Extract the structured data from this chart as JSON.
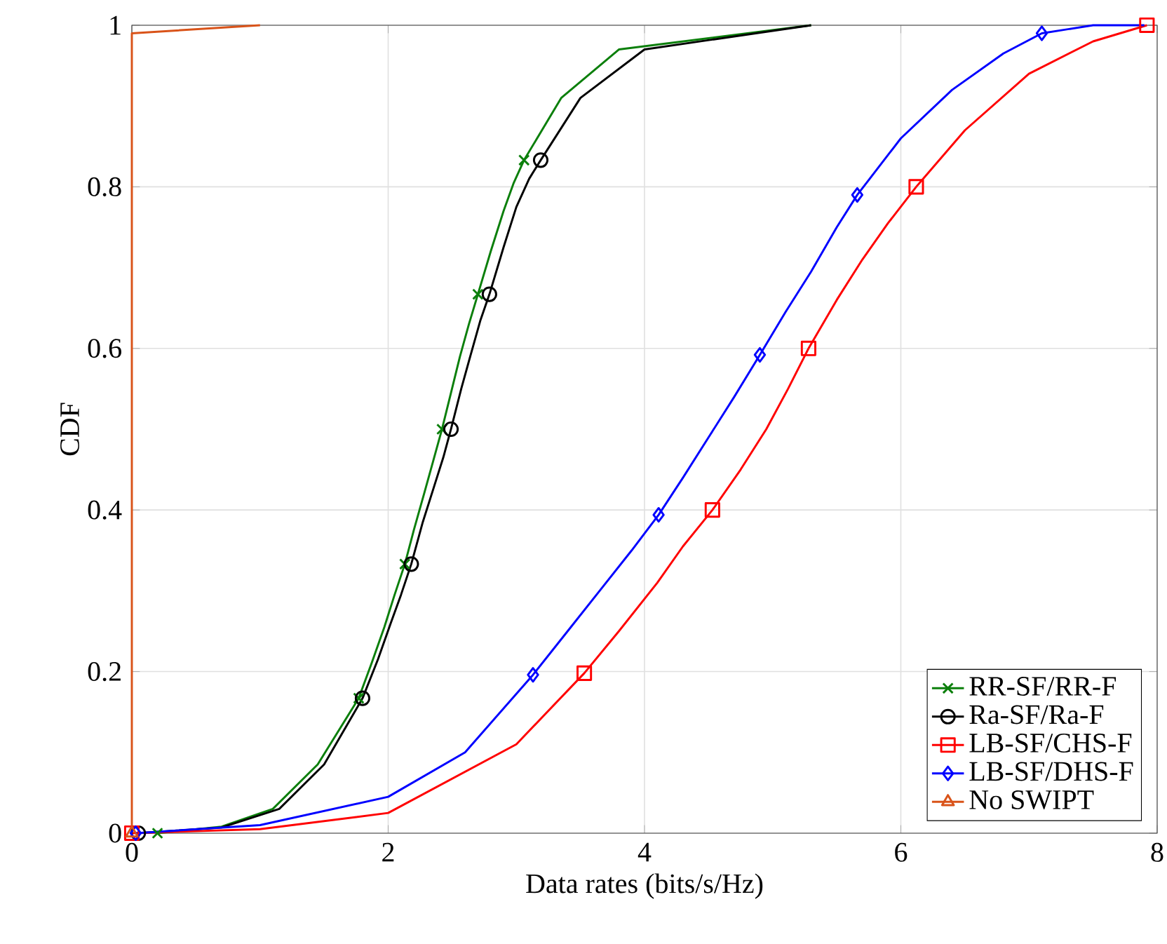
{
  "chart_data": {
    "type": "line",
    "xlabel": "Data rates (bits/s/Hz)",
    "ylabel": "CDF",
    "xlim": [
      0,
      8
    ],
    "ylim": [
      0,
      1
    ],
    "xticks": [
      0,
      2,
      4,
      6,
      8
    ],
    "yticks": [
      0,
      0.2,
      0.4,
      0.6,
      0.8,
      1
    ],
    "grid": true,
    "legend": "bottom right",
    "line_style": "solid",
    "series": [
      {
        "color": "#0b7f0b",
        "x": [
          0.2,
          0.7,
          1.1,
          1.45,
          1.77,
          1.87,
          1.97,
          2.05,
          2.13,
          2.2,
          2.28,
          2.35,
          2.42,
          2.49,
          2.56,
          2.63,
          2.7,
          2.8,
          2.9,
          2.98,
          3.06,
          3.35,
          3.8,
          5.3
        ],
        "values": [
          0,
          0.008,
          0.03,
          0.085,
          0.167,
          0.21,
          0.255,
          0.295,
          0.333,
          0.375,
          0.42,
          0.46,
          0.5,
          0.545,
          0.59,
          0.63,
          0.667,
          0.72,
          0.77,
          0.805,
          0.833,
          0.91,
          0.97,
          1
        ]
      },
      {
        "color": "#000000",
        "x": [
          0.05,
          0.7,
          1.15,
          1.5,
          1.8,
          1.92,
          2.02,
          2.1,
          2.18,
          2.27,
          2.36,
          2.43,
          2.49,
          2.57,
          2.64,
          2.72,
          2.79,
          2.9,
          3.0,
          3.1,
          3.19,
          3.5,
          4.0,
          5.3
        ],
        "values": [
          0,
          0.007,
          0.03,
          0.085,
          0.167,
          0.215,
          0.26,
          0.295,
          0.333,
          0.385,
          0.43,
          0.465,
          0.5,
          0.55,
          0.59,
          0.635,
          0.667,
          0.725,
          0.775,
          0.81,
          0.833,
          0.91,
          0.97,
          1
        ]
      },
      {
        "color": "#ff0000",
        "x": [
          0,
          1.0,
          2.0,
          3.0,
          3.53,
          3.8,
          4.1,
          4.3,
          4.53,
          4.75,
          4.95,
          5.12,
          5.28,
          5.5,
          5.7,
          5.9,
          6.12,
          6.5,
          7.0,
          7.5,
          7.92
        ],
        "values": [
          0,
          0.005,
          0.025,
          0.11,
          0.198,
          0.25,
          0.31,
          0.355,
          0.4,
          0.45,
          0.5,
          0.55,
          0.6,
          0.66,
          0.71,
          0.755,
          0.8,
          0.87,
          0.94,
          0.98,
          1
        ]
      },
      {
        "color": "#0000ff",
        "x": [
          0.03,
          1.0,
          2.0,
          2.6,
          3.13,
          3.4,
          3.65,
          3.9,
          4.11,
          4.3,
          4.5,
          4.7,
          4.9,
          5.1,
          5.3,
          5.5,
          5.66,
          6.0,
          6.4,
          6.8,
          7.1,
          7.5,
          7.9
        ],
        "values": [
          0,
          0.01,
          0.045,
          0.1,
          0.196,
          0.25,
          0.3,
          0.35,
          0.394,
          0.44,
          0.49,
          0.54,
          0.592,
          0.645,
          0.695,
          0.75,
          0.79,
          0.86,
          0.92,
          0.965,
          0.99,
          1,
          1
        ]
      },
      {
        "color": "#d95319",
        "x": [
          0,
          0,
          1
        ],
        "values": [
          0,
          0.99,
          1
        ]
      },
      {
        "type": "scatter",
        "name": "RR-SF/RR-F",
        "color": "#0b7f0b",
        "marker": "cross",
        "x": [
          0.2,
          1.77,
          2.13,
          2.42,
          2.7,
          3.06
        ],
        "values": [
          0,
          0.167,
          0.333,
          0.5,
          0.667,
          0.833
        ]
      },
      {
        "type": "scatter",
        "name": "Ra-SF/Ra-F",
        "color": "#000000",
        "marker": "circle",
        "x": [
          0.05,
          1.8,
          2.18,
          2.49,
          2.79,
          3.19
        ],
        "values": [
          0,
          0.167,
          0.333,
          0.5,
          0.667,
          0.833
        ]
      },
      {
        "type": "scatter",
        "name": "LB-SF/CHS-F",
        "color": "#ff0000",
        "marker": "square",
        "x": [
          0,
          3.53,
          4.53,
          5.28,
          6.12,
          7.92
        ],
        "values": [
          0,
          0.198,
          0.4,
          0.6,
          0.8,
          1
        ]
      },
      {
        "type": "scatter",
        "name": "LB-SF/DHS-F",
        "color": "#0000ff",
        "marker": "diamond",
        "x": [
          0.03,
          3.13,
          4.11,
          4.9,
          5.66,
          7.1
        ],
        "values": [
          0,
          0.196,
          0.394,
          0.592,
          0.79,
          0.99
        ]
      },
      {
        "type": "scatter",
        "name": "No SWIPT",
        "color": "#d95319",
        "marker": "triangle",
        "x": [
          0
        ],
        "values": [
          0
        ]
      }
    ]
  }
}
